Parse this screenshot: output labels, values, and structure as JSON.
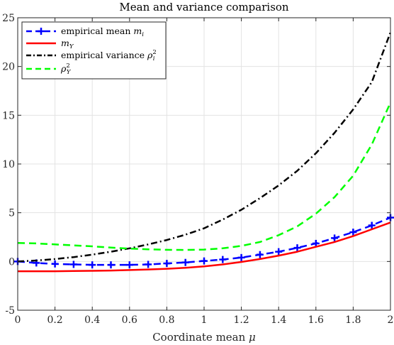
{
  "chart_data": {
    "type": "line",
    "title": "Mean and variance comparison",
    "xlabel": "Coordinate mean μ",
    "ylabel": "",
    "xlim": [
      0,
      2
    ],
    "ylim": [
      -5,
      25
    ],
    "xticks": [
      0,
      0.2,
      0.4,
      0.6,
      0.8,
      1,
      1.2,
      1.4,
      1.6,
      1.8,
      2
    ],
    "xtick_labels": [
      "0",
      "0.2",
      "0.4",
      "0.6",
      "0.8",
      "1",
      "1.2",
      "1.4",
      "1.6",
      "1.8",
      "2"
    ],
    "yticks": [
      -5,
      0,
      5,
      10,
      15,
      20,
      25
    ],
    "ytick_labels": [
      "-5",
      "0",
      "5",
      "10",
      "15",
      "20",
      "25"
    ],
    "grid": true,
    "legend_position": "top-left",
    "x": [
      0,
      0.1,
      0.2,
      0.3,
      0.4,
      0.5,
      0.6,
      0.7,
      0.8,
      0.9,
      1.0,
      1.1,
      1.2,
      1.3,
      1.4,
      1.5,
      1.6,
      1.7,
      1.8,
      1.9,
      2.0
    ],
    "series": [
      {
        "name": "empirical mean m_i",
        "legend_main": "empirical mean ",
        "legend_math": "m",
        "legend_sub": "i",
        "legend_sup": "",
        "color": "#0000ff",
        "style": "dashed-plus",
        "values": [
          0,
          -0.15,
          -0.25,
          -0.3,
          -0.35,
          -0.35,
          -0.35,
          -0.3,
          -0.2,
          -0.1,
          0.05,
          0.2,
          0.4,
          0.7,
          1.0,
          1.4,
          1.85,
          2.4,
          3.0,
          3.7,
          4.5
        ]
      },
      {
        "name": "m_Y",
        "legend_main": "",
        "legend_math": "m",
        "legend_sub": "Y",
        "legend_sup": "",
        "color": "#ff0000",
        "style": "solid",
        "values": [
          -1.0,
          -1.0,
          -1.0,
          -0.98,
          -0.96,
          -0.93,
          -0.88,
          -0.82,
          -0.75,
          -0.65,
          -0.5,
          -0.3,
          -0.05,
          0.25,
          0.6,
          1.0,
          1.5,
          2.0,
          2.6,
          3.3,
          4.0
        ]
      },
      {
        "name": "empirical variance rho_i^2",
        "legend_main": "empirical variance ",
        "legend_math": "ρ",
        "legend_sub": "i",
        "legend_sup": "2",
        "color": "#000000",
        "style": "dashdot",
        "values": [
          0,
          0.1,
          0.25,
          0.45,
          0.7,
          1.0,
          1.35,
          1.75,
          2.2,
          2.75,
          3.4,
          4.3,
          5.3,
          6.5,
          7.8,
          9.3,
          11.1,
          13.2,
          15.6,
          18.4,
          23.5
        ]
      },
      {
        "name": "rho_Y^2",
        "legend_main": "",
        "legend_math": "ρ",
        "legend_sub": "Y",
        "legend_sup": "2",
        "color": "#00ff00",
        "style": "dashed",
        "values": [
          1.9,
          1.85,
          1.75,
          1.65,
          1.55,
          1.42,
          1.32,
          1.25,
          1.2,
          1.18,
          1.22,
          1.35,
          1.6,
          2.0,
          2.7,
          3.6,
          4.9,
          6.6,
          8.8,
          12.0,
          16.3
        ]
      }
    ]
  }
}
